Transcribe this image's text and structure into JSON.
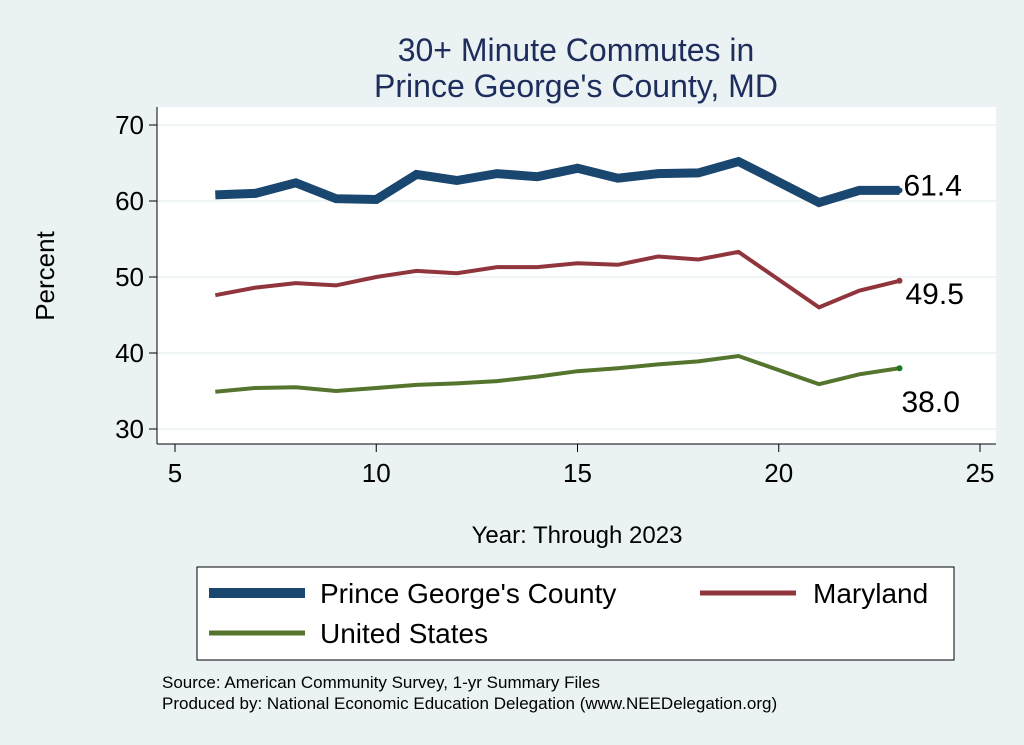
{
  "chart_data": {
    "type": "line",
    "title": [
      "30+ Minute Commutes in",
      "Prince George's County, MD"
    ],
    "xlabel": "Year: Through 2023",
    "ylabel": "Percent",
    "xlim": [
      5,
      25
    ],
    "ylim": [
      30,
      70
    ],
    "xticks": [
      5,
      10,
      15,
      20,
      25
    ],
    "yticks": [
      30,
      40,
      50,
      60,
      70
    ],
    "grid": true,
    "legend_position": "bottom",
    "series": [
      {
        "name": "Prince George's County",
        "color": "#1a476f",
        "end_label": "61.4",
        "x": [
          6,
          7,
          8,
          9,
          10,
          11,
          12,
          13,
          14,
          15,
          16,
          17,
          18,
          19,
          21,
          22,
          23
        ],
        "y": [
          60.8,
          61.0,
          62.4,
          60.3,
          60.2,
          63.5,
          62.7,
          63.6,
          63.2,
          64.3,
          63.0,
          63.6,
          63.7,
          65.2,
          59.8,
          61.4,
          61.4
        ]
      },
      {
        "name": "Maryland",
        "color": "#90353b",
        "end_label": "49.5",
        "x": [
          6,
          7,
          8,
          9,
          10,
          11,
          12,
          13,
          14,
          15,
          16,
          17,
          18,
          19,
          21,
          22,
          23
        ],
        "y": [
          47.6,
          48.6,
          49.2,
          48.9,
          50.0,
          50.8,
          50.5,
          51.3,
          51.3,
          51.8,
          51.6,
          52.7,
          52.3,
          53.3,
          46.0,
          48.2,
          49.5
        ]
      },
      {
        "name": "United States",
        "color": "#55752f",
        "end_label": "38.0",
        "x": [
          6,
          7,
          8,
          9,
          10,
          11,
          12,
          13,
          14,
          15,
          16,
          17,
          18,
          19,
          21,
          22,
          23
        ],
        "y": [
          34.9,
          35.4,
          35.5,
          35.0,
          35.4,
          35.8,
          36.0,
          36.3,
          36.9,
          37.6,
          38.0,
          38.5,
          38.9,
          39.6,
          35.9,
          37.2,
          38.0
        ]
      }
    ]
  },
  "source": "Source: American Community Survey, 1-yr Summary Files",
  "produced_by": "Produced by: National Economic Education Delegation (www.NEEDelegation.org)"
}
